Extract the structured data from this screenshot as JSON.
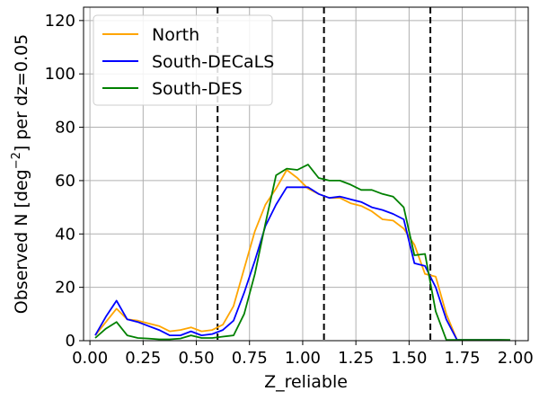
{
  "chart_data": {
    "type": "line",
    "xlabel": "Z_reliable",
    "ylabel": "Observed N [deg$^{-2}$] per dz=0.05",
    "ylabel_main": "Observed N [deg",
    "ylabel_sup": "−2",
    "ylabel_tail": "] per dz=0.05",
    "xlim": [
      -0.03,
      2.06
    ],
    "ylim": [
      0,
      125
    ],
    "xticks": [
      0.0,
      0.25,
      0.5,
      0.75,
      1.0,
      1.25,
      1.5,
      1.75,
      2.0
    ],
    "xtick_labels": [
      "0.00",
      "0.25",
      "0.50",
      "0.75",
      "1.00",
      "1.25",
      "1.50",
      "1.75",
      "2.00"
    ],
    "yticks": [
      0,
      20,
      40,
      60,
      80,
      100,
      120
    ],
    "ytick_labels": [
      "0",
      "20",
      "40",
      "60",
      "80",
      "100",
      "120"
    ],
    "grid": true,
    "legend_position": "top-left",
    "vlines": [
      0.6,
      1.1,
      1.6
    ],
    "x": [
      0.025,
      0.075,
      0.125,
      0.175,
      0.225,
      0.275,
      0.325,
      0.375,
      0.425,
      0.475,
      0.525,
      0.575,
      0.625,
      0.675,
      0.725,
      0.775,
      0.825,
      0.875,
      0.925,
      0.975,
      1.025,
      1.075,
      1.125,
      1.175,
      1.225,
      1.275,
      1.325,
      1.375,
      1.425,
      1.475,
      1.525,
      1.575,
      1.625,
      1.675,
      1.725,
      1.775,
      1.825,
      1.875,
      1.925,
      1.975
    ],
    "series": [
      {
        "name": "North",
        "color": "#ffa500",
        "values": [
          2,
          7,
          12,
          8,
          7.5,
          6.5,
          5.5,
          3.5,
          4,
          5,
          3.5,
          4,
          6,
          13,
          27,
          41,
          51,
          57,
          64,
          61,
          57,
          55,
          53.5,
          53.5,
          51.5,
          50.5,
          48.5,
          45.5,
          45,
          42,
          36,
          25,
          24,
          10,
          0.3,
          0.3,
          0.3,
          0.3,
          0.3,
          0.2
        ]
      },
      {
        "name": "South-DECaLS",
        "color": "#0000ff",
        "values": [
          2,
          9,
          15,
          8,
          7,
          5.5,
          4,
          2,
          2,
          3.5,
          2,
          2.5,
          4,
          7.5,
          18,
          30,
          43,
          51,
          57.5,
          57.5,
          57.5,
          55,
          53.5,
          54,
          53,
          52,
          50,
          49,
          47.5,
          45.5,
          29,
          28,
          20,
          8,
          0.3,
          0.3,
          0.3,
          0.3,
          0.3,
          0.2
        ]
      },
      {
        "name": "South-DES",
        "color": "#008000",
        "values": [
          1,
          4.5,
          7,
          2,
          1,
          0.8,
          0.5,
          0.5,
          0.8,
          2,
          1,
          1,
          1.5,
          2,
          10,
          25,
          44,
          62,
          64.5,
          64,
          66,
          61,
          60,
          60,
          58.5,
          56.5,
          56.5,
          55,
          54,
          50,
          32,
          32.5,
          11,
          0.3,
          0.3,
          0.3,
          0.3,
          0.3,
          0.3,
          0.3
        ]
      }
    ]
  }
}
